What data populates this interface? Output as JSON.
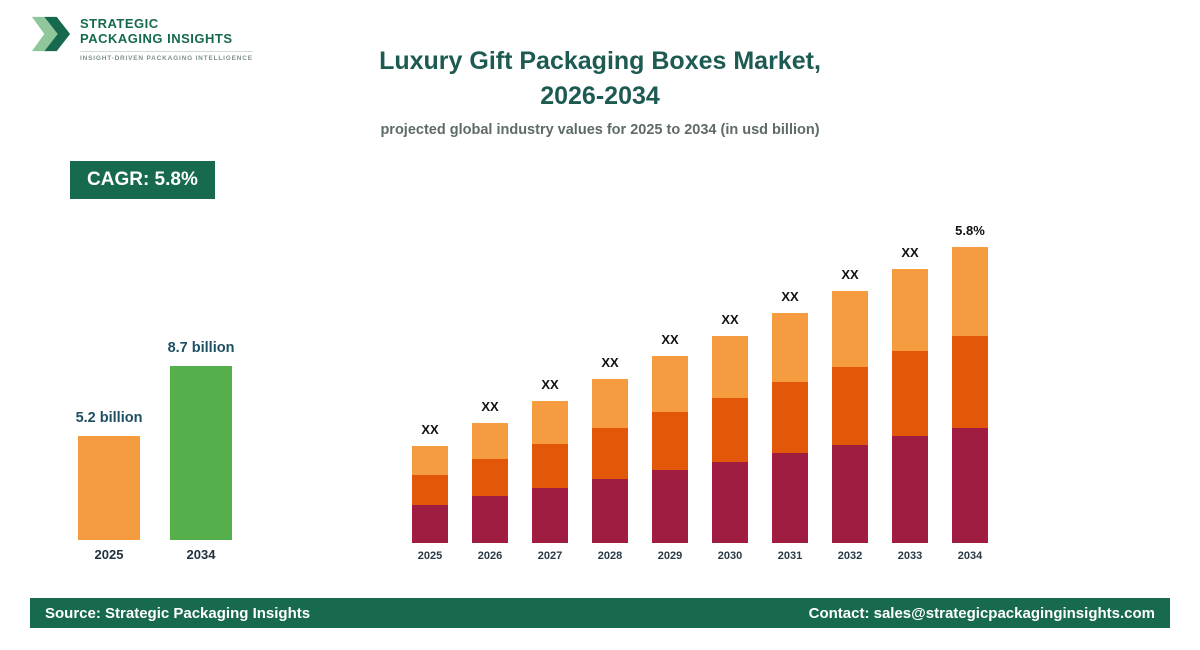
{
  "header": {
    "logo": {
      "line1": "STRATEGIC",
      "line2": "PACKAGING INSIGHTS",
      "tagline": "INSIGHT-DRIVEN PACKAGING INTELLIGENCE"
    },
    "title_line1": "Luxury Gift Packaging Boxes Market,",
    "title_line2": "2026-2034",
    "subtitle": "projected global industry values for 2025 to 2034 (in usd billion)"
  },
  "cagr_badge": "CAGR: 5.8%",
  "colors": {
    "brand_green": "#176a4e",
    "title_teal": "#1d5b52",
    "mini_orange": "#f59c40",
    "mini_green": "#55b04b",
    "segment_bottom": "#a01d42",
    "segment_middle": "#e35708",
    "segment_top": "#f59c40"
  },
  "chart_data": [
    {
      "type": "bar",
      "title": "Market size 2025 vs 2034",
      "categories": [
        "2025",
        "2034"
      ],
      "values": [
        5.2,
        8.7
      ],
      "value_labels": [
        "5.2 billion",
        "8.7 billion"
      ],
      "colors": [
        "#f59c40",
        "#55b04b"
      ],
      "unit": "usd billion"
    },
    {
      "type": "bar",
      "stacked": true,
      "title": "Luxury Gift Packaging Boxes Market, 2026-2034",
      "categories": [
        "2025",
        "2026",
        "2027",
        "2028",
        "2029",
        "2030",
        "2031",
        "2032",
        "2033",
        "2034"
      ],
      "annotations": [
        "XX",
        "XX",
        "XX",
        "XX",
        "XX",
        "XX",
        "XX",
        "XX",
        "XX",
        "5.8%"
      ],
      "totals_usd_billion_estimated": [
        5.2,
        5.5,
        5.8,
        6.2,
        6.5,
        6.9,
        7.3,
        7.7,
        8.2,
        8.7
      ],
      "segment_values_labeled": false,
      "segment_fractions_bottom_to_top": [
        0.39,
        0.31,
        0.3
      ],
      "segment_colors_bottom_to_top": [
        "#a01d42",
        "#e35708",
        "#f59c40"
      ],
      "unit": "usd billion",
      "grid": false,
      "legend": false
    }
  ],
  "footer": {
    "source": "Source: Strategic Packaging Insights",
    "contact": "Contact: sales@strategicpackaginginsights.com"
  }
}
